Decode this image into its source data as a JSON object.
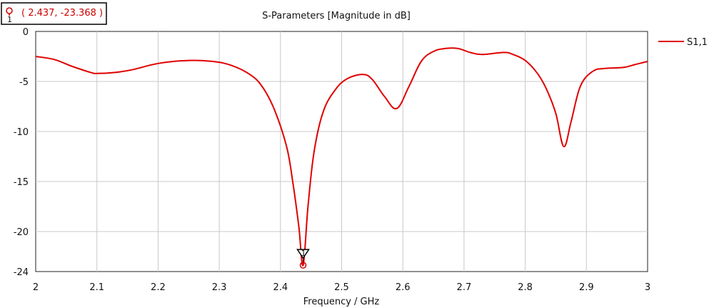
{
  "chart_data": {
    "type": "line",
    "title": "S-Parameters [Magnitude in dB]",
    "xlabel": "Frequency / GHz",
    "ylabel": "",
    "xlim": [
      2,
      3
    ],
    "ylim": [
      -24,
      0
    ],
    "x_ticks": [
      "2",
      "2.1",
      "2.2",
      "2.3",
      "2.4",
      "2.5",
      "2.6",
      "2.7",
      "2.8",
      "2.9",
      "3"
    ],
    "y_ticks": [
      "0",
      "-5",
      "-10",
      "-15",
      "-20",
      "-24"
    ],
    "grid": true,
    "legend_position": "top-right",
    "series": [
      {
        "name": "S1,1",
        "color": "#e00000",
        "x": [
          2.0,
          2.03,
          2.06,
          2.09,
          2.1,
          2.13,
          2.16,
          2.2,
          2.25,
          2.29,
          2.32,
          2.35,
          2.37,
          2.39,
          2.41,
          2.42,
          2.43,
          2.437,
          2.445,
          2.455,
          2.47,
          2.49,
          2.51,
          2.535,
          2.55,
          2.57,
          2.59,
          2.61,
          2.63,
          2.65,
          2.67,
          2.69,
          2.71,
          2.73,
          2.765,
          2.78,
          2.8,
          2.82,
          2.835,
          2.85,
          2.863,
          2.875,
          2.89,
          2.91,
          2.93,
          2.96,
          2.98,
          3.0
        ],
        "values": [
          -2.5,
          -2.8,
          -3.5,
          -4.1,
          -4.2,
          -4.1,
          -3.8,
          -3.2,
          -2.9,
          -3.0,
          -3.4,
          -4.3,
          -5.5,
          -7.8,
          -11.5,
          -15.0,
          -19.5,
          -23.368,
          -17.5,
          -12.0,
          -8.0,
          -5.8,
          -4.7,
          -4.3,
          -4.8,
          -6.5,
          -7.7,
          -5.5,
          -3.0,
          -2.0,
          -1.7,
          -1.7,
          -2.1,
          -2.3,
          -2.1,
          -2.3,
          -2.9,
          -4.2,
          -5.8,
          -8.2,
          -11.5,
          -9.0,
          -5.5,
          -4.0,
          -3.7,
          -3.6,
          -3.3,
          -3.0
        ]
      }
    ],
    "marker": {
      "label": "( 2.437, -23.368 )",
      "index": "1",
      "x": 2.437,
      "y": -23.368
    }
  }
}
